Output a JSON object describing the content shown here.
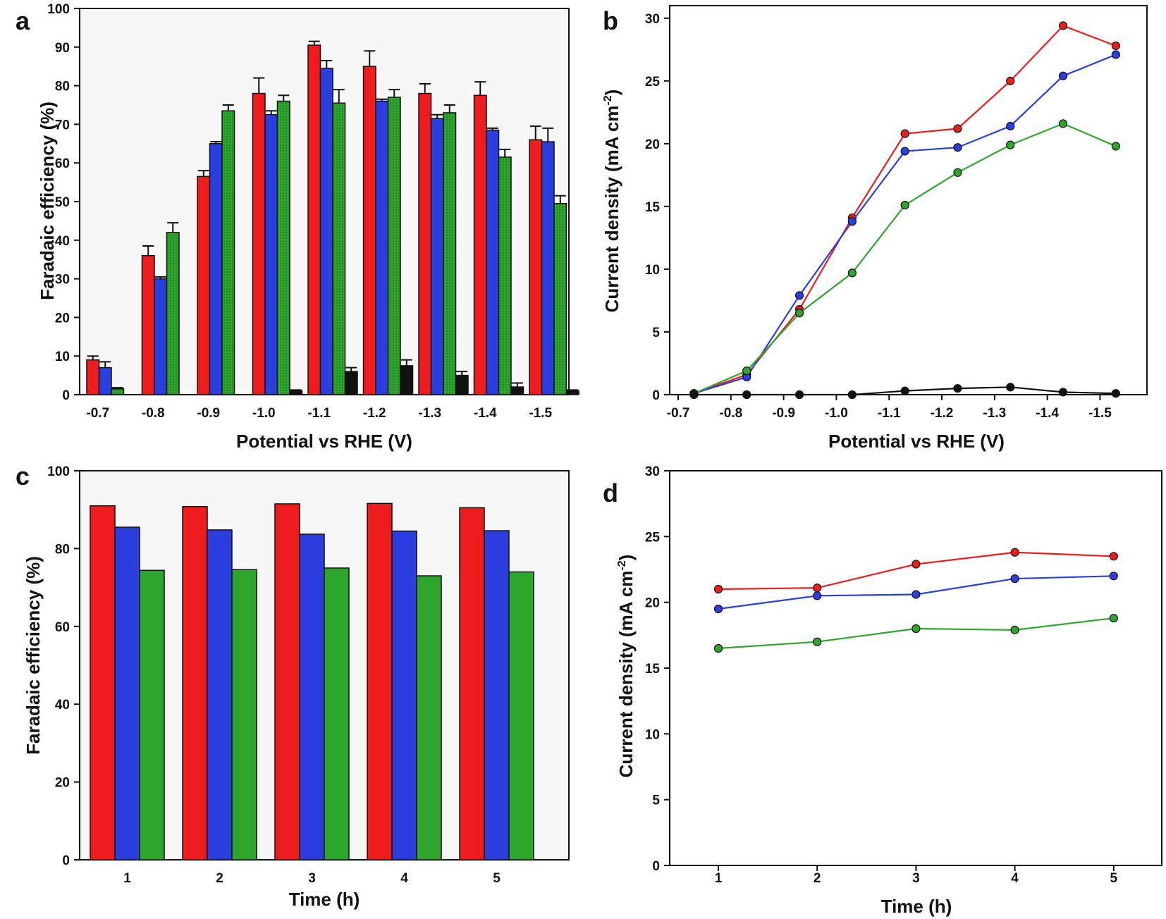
{
  "chart_data": [
    {
      "panel": "a",
      "type": "bar",
      "xlabel": "Potential vs RHE (V)",
      "ylabel": "Faradaic efficiency (%)",
      "ylim": [
        0,
        100
      ],
      "yticks": [
        "0",
        "10",
        "20",
        "30",
        "40",
        "50",
        "60",
        "70",
        "80",
        "90",
        "100"
      ],
      "categories": [
        "-0.7",
        "-0.8",
        "-0.9",
        "-1.0",
        "-1.1",
        "-1.2",
        "-1.3",
        "-1.4",
        "-1.5"
      ],
      "series": [
        {
          "color": "#ee1c1c",
          "values": [
            9,
            36,
            56.5,
            78,
            90.5,
            85,
            78,
            77.5,
            66
          ],
          "errors": [
            1,
            2.5,
            1.5,
            4,
            1,
            4,
            2.5,
            3.5,
            3.5
          ]
        },
        {
          "color": "#2b3fe0",
          "values": [
            7,
            30,
            65,
            72.5,
            84.5,
            76,
            71.5,
            68.5,
            65.5
          ],
          "errors": [
            1.5,
            0.5,
            0.5,
            1,
            2,
            0.5,
            1,
            0.5,
            3.5
          ]
        },
        {
          "color": "#2ea62e",
          "pattern": "dotted",
          "values": [
            1.5,
            42,
            73.5,
            76,
            75.5,
            77,
            73,
            61.5,
            49.5
          ],
          "errors": [
            0.3,
            2.5,
            1.5,
            1.5,
            3.5,
            2,
            2,
            2,
            2
          ]
        },
        {
          "color": "#111111",
          "values": [
            0,
            0,
            0,
            1,
            6,
            7.5,
            5,
            2,
            1
          ],
          "errors": [
            0,
            0,
            0,
            0.2,
            1,
            1.5,
            1,
            1,
            0.2
          ]
        }
      ]
    },
    {
      "panel": "b",
      "type": "line",
      "xlabel": "Potential vs RHE (V)",
      "ylabel": "Current density (mA cm-2)",
      "ylabel_main": "Current density (mA cm",
      "ylabel_sup": "-2",
      "ylabel_end": ")",
      "ylim": [
        0,
        31
      ],
      "yticks": [
        "0",
        "5",
        "10",
        "15",
        "20",
        "25",
        "30"
      ],
      "xticks": [
        "-0.7",
        "-0.8",
        "-0.9",
        "-1.0",
        "-1.1",
        "-1.2",
        "-1.3",
        "-1.4",
        "-1.5"
      ],
      "x": [
        -0.73,
        -0.83,
        -0.93,
        -1.03,
        -1.13,
        -1.23,
        -1.33,
        -1.43,
        -1.53
      ],
      "series": [
        {
          "color": "#ee1c1c",
          "values": [
            0.1,
            1.6,
            6.8,
            14.1,
            20.8,
            21.2,
            25,
            29.4,
            27.8
          ]
        },
        {
          "color": "#2b3fe0",
          "values": [
            0.1,
            1.4,
            7.9,
            13.8,
            19.4,
            19.7,
            21.4,
            25.4,
            27.1
          ]
        },
        {
          "color": "#2ea62e",
          "values": [
            0.1,
            1.9,
            6.5,
            9.7,
            15.1,
            17.7,
            19.9,
            21.6,
            19.8
          ]
        },
        {
          "color": "#111111",
          "values": [
            0,
            0,
            0,
            0,
            0.3,
            0.5,
            0.6,
            0.2,
            0.1
          ]
        }
      ]
    },
    {
      "panel": "c",
      "type": "bar",
      "xlabel": "Time (h)",
      "ylabel": "Faradaic efficiency (%)",
      "ylim": [
        0,
        100
      ],
      "yticks": [
        "0",
        "20",
        "40",
        "60",
        "80",
        "100"
      ],
      "categories": [
        "1",
        "2",
        "3",
        "4",
        "5"
      ],
      "series": [
        {
          "color": "#ee1c1c",
          "values": [
            91,
            90.8,
            91.5,
            91.6,
            90.5
          ]
        },
        {
          "color": "#2b3fe0",
          "values": [
            85.5,
            84.8,
            83.7,
            84.5,
            84.6
          ]
        },
        {
          "color": "#2ea62e",
          "values": [
            74.4,
            74.6,
            75,
            73,
            74
          ]
        }
      ]
    },
    {
      "panel": "d",
      "type": "line",
      "xlabel": "Time (h)",
      "ylabel": "Current density (mA cm-2)",
      "ylabel_main": "Current density (mA cm",
      "ylabel_sup": "-2",
      "ylabel_end": ")",
      "ylim": [
        0,
        30
      ],
      "yticks": [
        "0",
        "5",
        "10",
        "15",
        "20",
        "25",
        "30"
      ],
      "xticks": [
        "1",
        "2",
        "3",
        "4",
        "5"
      ],
      "x": [
        1,
        2,
        3,
        4,
        5
      ],
      "series": [
        {
          "color": "#ee1c1c",
          "values": [
            21,
            21.1,
            22.9,
            23.8,
            23.5
          ]
        },
        {
          "color": "#2b3fe0",
          "values": [
            19.5,
            20.5,
            20.6,
            21.8,
            22
          ]
        },
        {
          "color": "#2ea62e",
          "values": [
            16.5,
            17,
            18,
            17.9,
            18.8
          ]
        }
      ]
    }
  ]
}
